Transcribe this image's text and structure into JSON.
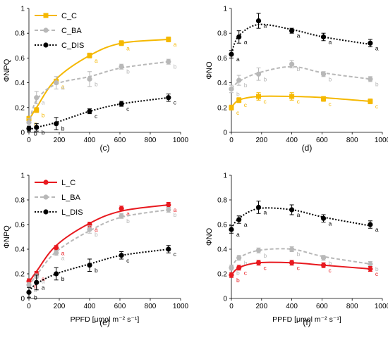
{
  "chart_data": [
    {
      "id": "c",
      "type": "line",
      "panel_label": "(c)",
      "ylabel": "ΦNPQ",
      "xlabel": "",
      "xlim": [
        0,
        1000
      ],
      "ylim": [
        0,
        1
      ],
      "xticks": [
        0,
        200,
        400,
        600,
        800,
        1000
      ],
      "yticks": [
        0,
        0.2,
        0.4,
        0.6,
        0.8,
        1
      ],
      "x": [
        0,
        50,
        180,
        400,
        610,
        920
      ],
      "legend": "top-left",
      "series": [
        {
          "name": "C_C",
          "color": "#f5b800",
          "style": "solid",
          "marker": "square",
          "in_legend": true,
          "values": [
            0.11,
            0.18,
            0.41,
            0.62,
            0.72,
            0.75
          ],
          "err": [
            0.02,
            0.02,
            0.02,
            0.02,
            0.02,
            0.02
          ],
          "fit": [
            0.1,
            0.2,
            0.43,
            0.62,
            0.72,
            0.75
          ],
          "labels": [
            "a",
            "b",
            "a",
            "a",
            "a",
            "a"
          ]
        },
        {
          "name": "C_BA",
          "color": "#b8b8b8",
          "style": "dashed",
          "marker": "circle",
          "in_legend": true,
          "values": [
            0.08,
            0.28,
            0.4,
            0.43,
            0.53,
            0.57
          ],
          "err": [
            0.03,
            0.05,
            0.05,
            0.06,
            0.02,
            0.02
          ],
          "fit": [
            0.06,
            0.26,
            0.39,
            0.45,
            0.52,
            0.57
          ],
          "labels": [
            "a",
            "a",
            "a",
            "b",
            "b",
            "b"
          ]
        },
        {
          "name": "C_DIS",
          "color": "#000000",
          "style": "dotted",
          "marker": "circle",
          "in_legend": true,
          "values": [
            0.03,
            0.04,
            0.07,
            0.17,
            0.23,
            0.28
          ],
          "err": [
            0.02,
            0.03,
            0.05,
            0.02,
            0.02,
            0.03
          ],
          "fit": [
            0.02,
            0.04,
            0.08,
            0.17,
            0.23,
            0.28
          ],
          "labels": [
            "b",
            "b",
            "b",
            "c",
            "c",
            "c"
          ]
        }
      ]
    },
    {
      "id": "d",
      "type": "line",
      "panel_label": "(d)",
      "ylabel": "ΦNO",
      "xlabel": "",
      "xlim": [
        0,
        1000
      ],
      "ylim": [
        0,
        1
      ],
      "xticks": [
        0,
        200,
        400,
        600,
        800,
        1000
      ],
      "yticks": [
        0,
        0.2,
        0.4,
        0.6,
        0.8,
        1
      ],
      "x": [
        0,
        50,
        180,
        400,
        610,
        920
      ],
      "legend": "none",
      "series": [
        {
          "name": "",
          "color": "#000000",
          "style": "dotted",
          "marker": "circle",
          "in_legend": false,
          "values": [
            0.63,
            0.77,
            0.9,
            0.82,
            0.77,
            0.72
          ],
          "err": [
            0.03,
            0.05,
            0.06,
            0.02,
            0.03,
            0.03
          ],
          "fit": [
            0.64,
            0.78,
            0.87,
            0.83,
            0.77,
            0.71
          ],
          "labels": [
            "a",
            "a",
            "a",
            "a",
            "a",
            "a"
          ]
        },
        {
          "name": "",
          "color": "#b8b8b8",
          "style": "dashed",
          "marker": "circle",
          "in_legend": false,
          "values": [
            0.35,
            0.42,
            0.47,
            0.55,
            0.47,
            0.43
          ],
          "err": [
            0.03,
            0.04,
            0.05,
            0.03,
            0.02,
            0.02
          ],
          "fit": [
            0.35,
            0.41,
            0.48,
            0.53,
            0.48,
            0.43
          ],
          "labels": [
            "b",
            "b",
            "b",
            "b",
            "b",
            "b"
          ]
        },
        {
          "name": "",
          "color": "#f5b800",
          "style": "solid",
          "marker": "square",
          "in_legend": false,
          "values": [
            0.2,
            0.26,
            0.29,
            0.29,
            0.27,
            0.25
          ],
          "err": [
            0.02,
            0.02,
            0.03,
            0.03,
            0.02,
            0.02
          ],
          "fit": [
            0.2,
            0.26,
            0.29,
            0.29,
            0.28,
            0.25
          ],
          "labels": [
            "c",
            "c",
            "c",
            "c",
            "c",
            "c"
          ]
        }
      ]
    },
    {
      "id": "e",
      "type": "line",
      "panel_label": "(e)",
      "ylabel": "ΦNPQ",
      "xlabel": "PPFD [μmol m⁻² s⁻¹]",
      "xlim": [
        0,
        1000
      ],
      "ylim": [
        0,
        1
      ],
      "xticks": [
        0,
        200,
        400,
        600,
        800,
        1000
      ],
      "yticks": [
        0,
        0.2,
        0.4,
        0.6,
        0.8,
        1
      ],
      "x": [
        0,
        50,
        180,
        400,
        610,
        920
      ],
      "legend": "top-left",
      "series": [
        {
          "name": "L_C",
          "color": "#e8191f",
          "style": "solid",
          "marker": "circle",
          "in_legend": true,
          "values": [
            0.14,
            0.2,
            0.41,
            0.6,
            0.73,
            0.76
          ],
          "err": [
            0.02,
            0.02,
            0.02,
            0.02,
            0.02,
            0.02
          ],
          "fit": [
            0.13,
            0.22,
            0.43,
            0.61,
            0.71,
            0.76
          ],
          "labels": [
            "a",
            "a",
            "a",
            "a",
            "a",
            "a"
          ]
        },
        {
          "name": "L_BA",
          "color": "#b8b8b8",
          "style": "dashed",
          "marker": "circle",
          "in_legend": true,
          "values": [
            0.11,
            0.18,
            0.37,
            0.56,
            0.67,
            0.72
          ],
          "err": [
            0.02,
            0.02,
            0.02,
            0.03,
            0.02,
            0.02
          ],
          "fit": [
            0.1,
            0.19,
            0.38,
            0.55,
            0.66,
            0.72
          ],
          "labels": [
            "b",
            "a",
            "a",
            "b",
            "b",
            "b"
          ]
        },
        {
          "name": "L_DIS",
          "color": "#000000",
          "style": "dotted",
          "marker": "circle",
          "in_legend": true,
          "values": [
            0.05,
            0.13,
            0.2,
            0.27,
            0.35,
            0.4
          ],
          "err": [
            0.04,
            0.06,
            0.05,
            0.05,
            0.03,
            0.03
          ],
          "fit": [
            0.06,
            0.12,
            0.2,
            0.28,
            0.35,
            0.4
          ],
          "labels": [
            "b",
            "a",
            "b",
            "b",
            "c",
            "c"
          ]
        }
      ]
    },
    {
      "id": "f",
      "type": "line",
      "panel_label": "(f)",
      "ylabel": "ΦNO",
      "xlabel": "PPFD [μmol m⁻² s⁻¹]",
      "xlim": [
        0,
        1000
      ],
      "ylim": [
        0,
        1
      ],
      "xticks": [
        0,
        200,
        400,
        600,
        800,
        1000
      ],
      "yticks": [
        0,
        0.2,
        0.4,
        0.6,
        0.8,
        1
      ],
      "x": [
        0,
        50,
        180,
        400,
        610,
        920
      ],
      "legend": "none",
      "series": [
        {
          "name": "",
          "color": "#000000",
          "style": "dotted",
          "marker": "circle",
          "in_legend": false,
          "values": [
            0.56,
            0.64,
            0.74,
            0.72,
            0.65,
            0.6
          ],
          "err": [
            0.03,
            0.03,
            0.05,
            0.04,
            0.03,
            0.03
          ],
          "fit": [
            0.57,
            0.65,
            0.73,
            0.72,
            0.66,
            0.59
          ],
          "labels": [
            "a",
            "a",
            "a",
            "a",
            "a",
            "a"
          ]
        },
        {
          "name": "",
          "color": "#b8b8b8",
          "style": "dashed",
          "marker": "circle",
          "in_legend": false,
          "values": [
            0.25,
            0.33,
            0.39,
            0.4,
            0.33,
            0.28
          ],
          "err": [
            0.02,
            0.02,
            0.02,
            0.02,
            0.02,
            0.02
          ],
          "fit": [
            0.25,
            0.33,
            0.39,
            0.4,
            0.34,
            0.28
          ],
          "labels": [
            "b",
            "b",
            "b",
            "b",
            "b",
            "b"
          ]
        },
        {
          "name": "",
          "color": "#e8191f",
          "style": "solid",
          "marker": "circle",
          "in_legend": false,
          "values": [
            0.19,
            0.25,
            0.29,
            0.29,
            0.27,
            0.24
          ],
          "err": [
            0.02,
            0.02,
            0.02,
            0.02,
            0.02,
            0.02
          ],
          "fit": [
            0.19,
            0.25,
            0.29,
            0.29,
            0.27,
            0.24
          ],
          "labels": [
            "b",
            "c",
            "c",
            "c",
            "c",
            "c"
          ]
        }
      ]
    }
  ]
}
